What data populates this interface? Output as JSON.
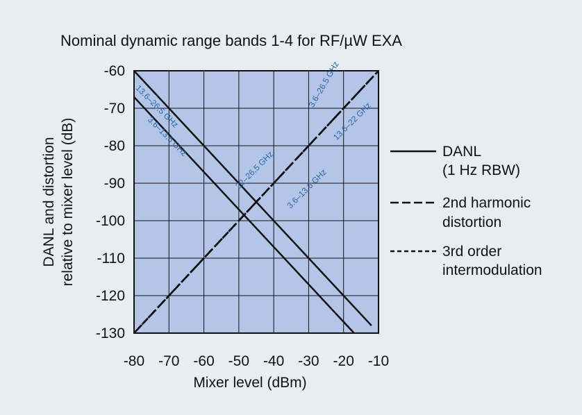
{
  "chart_data": {
    "type": "line",
    "title": "Nominal dynamic range bands 1-4 for RF/µW EXA",
    "xlabel": "Mixer level (dBm)",
    "ylabel_lines": [
      "DANL and distortion",
      "relative to mixer level (dB)"
    ],
    "xlim": [
      -80,
      -10
    ],
    "ylim": [
      -130,
      -60
    ],
    "x_ticks": [
      "-80",
      "-70",
      "-60",
      "-50",
      "-40",
      "-30",
      "-20",
      "-10"
    ],
    "y_ticks": [
      "-60",
      "-70",
      "-80",
      "-90",
      "-100",
      "-110",
      "-120",
      "-130"
    ],
    "grid": true,
    "plot_background": "#b4c6e7",
    "legend_position": "right",
    "legend": [
      {
        "style": "solid",
        "lines": [
          "DANL",
          "(1 Hz RBW)"
        ]
      },
      {
        "style": "long-dash",
        "lines": [
          "2nd harmonic",
          "distortion"
        ]
      },
      {
        "style": "short-dash",
        "lines": [
          "3rd order",
          "intermodulation"
        ]
      }
    ],
    "series": [
      {
        "group": "DANL",
        "style": "solid",
        "x": [
          -80,
          -12
        ],
        "y": [
          -60,
          -128
        ]
      },
      {
        "group": "DANL",
        "style": "solid",
        "x": [
          -80,
          -17
        ],
        "y": [
          -67,
          -130
        ]
      },
      {
        "group": "2nd harmonic",
        "style": "long-dash",
        "x": [
          -80,
          -10
        ],
        "y": [
          -130,
          -60
        ]
      },
      {
        "group": "2nd harmonic",
        "style": "long-dash",
        "x": [
          -80,
          -10
        ],
        "y": [
          -130,
          -60
        ]
      },
      {
        "group": "2nd harmonic",
        "style": "long-dash",
        "x": [
          -80,
          -10
        ],
        "y": [
          -130,
          -60
        ]
      },
      {
        "group": "3rd order",
        "style": "short-dash",
        "x": [
          -80,
          -10
        ],
        "y": [
          -130,
          -60
        ]
      },
      {
        "group": "3rd order",
        "style": "short-dash",
        "x": [
          -80,
          -10
        ],
        "y": [
          -130,
          -60
        ]
      },
      {
        "group": "3rd order",
        "style": "short-dash",
        "x": [
          -80,
          -10
        ],
        "y": [
          -130,
          -60
        ]
      },
      {
        "group": "3rd order",
        "style": "short-dash",
        "x": [
          -80,
          -10
        ],
        "y": [
          -130,
          -60
        ]
      }
    ],
    "annotations": [
      {
        "text": "13.6–26.5 GHz",
        "x": -74,
        "y": -70,
        "angle": 45
      },
      {
        "text": "3.6–13.6 GHz",
        "x": -71,
        "y": -78,
        "angle": 45
      },
      {
        "text": "22–26.5 GHz",
        "x": -45,
        "y": -87,
        "angle": -45
      },
      {
        "text": "3.6–26.5 GHz",
        "x": -25,
        "y": -64,
        "angle": -60
      },
      {
        "text": "13.6–22 GHz",
        "x": -17,
        "y": -74,
        "angle": -45
      },
      {
        "text": "3.6–13.6 GHz",
        "x": -30,
        "y": -92,
        "angle": -45
      }
    ]
  }
}
